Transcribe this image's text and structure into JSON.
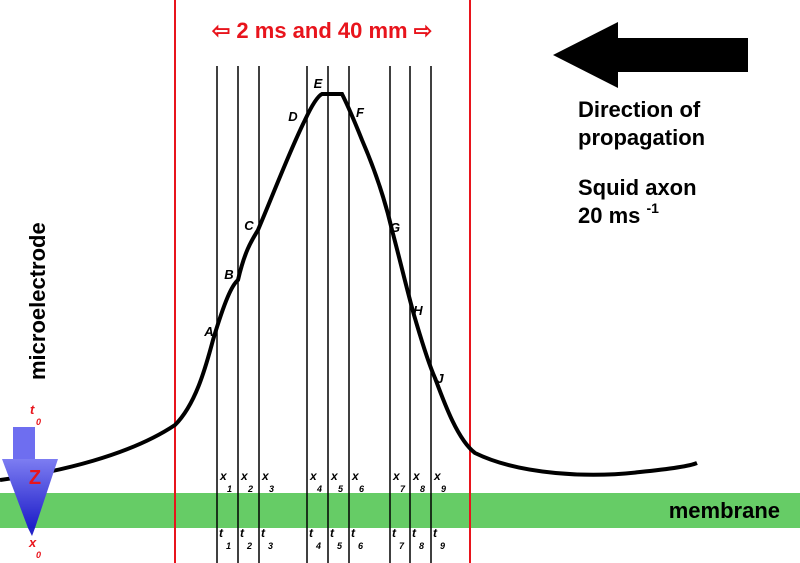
{
  "header": {
    "left_arrow": "⇦",
    "text": "2 ms and 40 mm",
    "right_arrow": "⇨"
  },
  "direction": {
    "line1": "Direction of",
    "line2": "propagation"
  },
  "species": {
    "line1": "Squid axon",
    "line2": "20 ms",
    "superscript": "-1"
  },
  "side_label": "microelectrode",
  "membrane_label": "membrane",
  "electrode": {
    "t0_main": "t",
    "t0_sub": "0",
    "x0_main": "x",
    "x0_sub": "0",
    "z_label": "Z"
  },
  "points": [
    "A",
    "B",
    "C",
    "D",
    "E",
    "F",
    "G",
    "H",
    "J"
  ],
  "x_labels": [
    "x",
    "x",
    "x",
    "x",
    "x",
    "x",
    "x",
    "x",
    "x"
  ],
  "t_labels": [
    "t",
    "t",
    "t",
    "t",
    "t",
    "t",
    "t",
    "t",
    "t"
  ],
  "subscripts": [
    "1",
    "2",
    "3",
    "4",
    "5",
    "6",
    "7",
    "8",
    "9"
  ],
  "colors": {
    "red": "#e8141c",
    "membrane": "#66cc66",
    "electrode_top": "#6e6ef0",
    "electrode_bottom": "#2424c8",
    "black": "#000000"
  }
}
